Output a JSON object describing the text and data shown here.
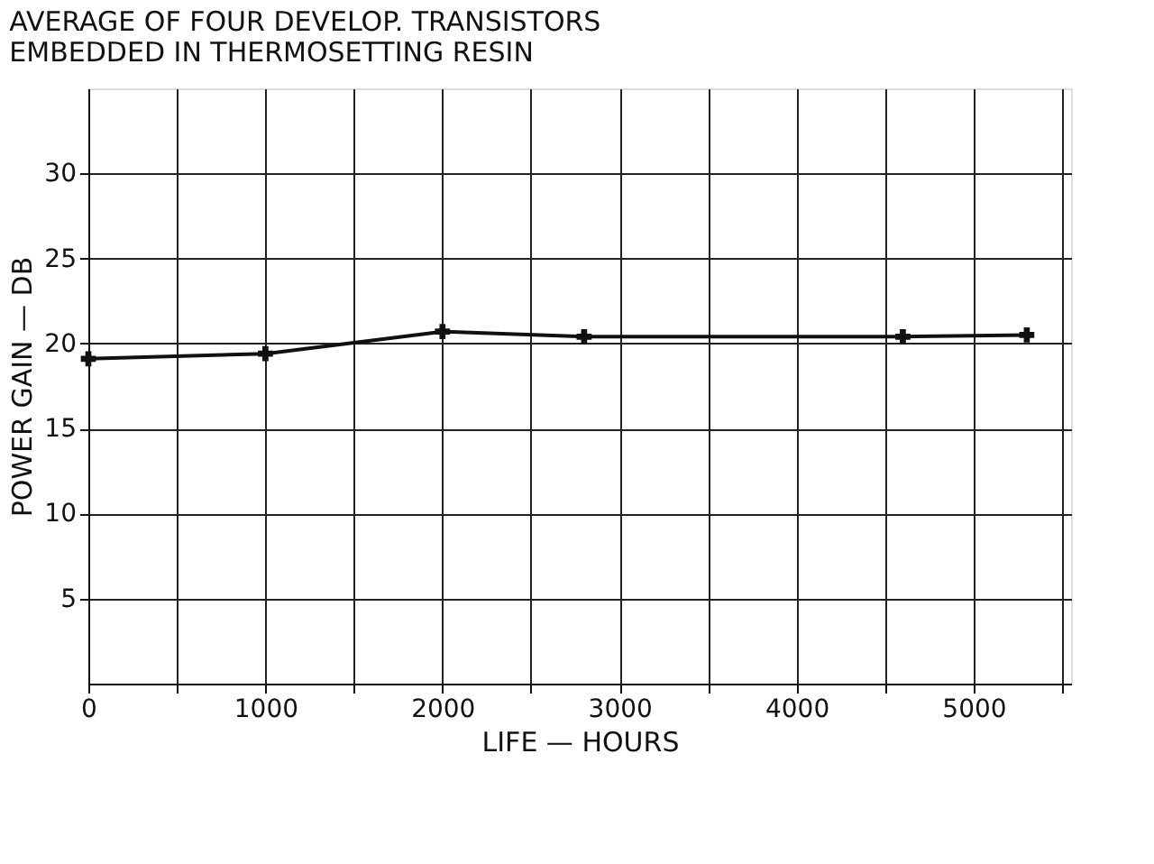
{
  "chart_data": {
    "type": "line",
    "title": "AVERAGE OF FOUR DEVELOP. TRANSISTORS\nEMBEDDED IN THERMOSETTING RESIN",
    "xlabel": "LIFE — HOURS",
    "ylabel": "POWER GAIN — DB",
    "x": [
      0,
      1000,
      2000,
      2800,
      4600,
      5300
    ],
    "series": [
      {
        "color": "#111111",
        "values": [
          19.1,
          19.4,
          20.7,
          20.4,
          20.4,
          20.5
        ]
      }
    ],
    "xlim": [
      0,
      5550
    ],
    "ylim": [
      0,
      35
    ],
    "xticks": [
      0,
      {
        "value": 500,
        "label": null
      },
      1000,
      {
        "value": 1500,
        "label": null
      },
      2000,
      {
        "value": 2500,
        "label": null
      },
      3000,
      {
        "value": 3500,
        "label": null
      },
      4000,
      {
        "value": 4500,
        "label": null
      },
      5000,
      {
        "value": 5500,
        "label": null
      }
    ],
    "yticks": [
      5,
      10,
      15,
      20,
      25,
      30
    ],
    "grid": true,
    "marker": "cross",
    "line_style": "solid"
  }
}
